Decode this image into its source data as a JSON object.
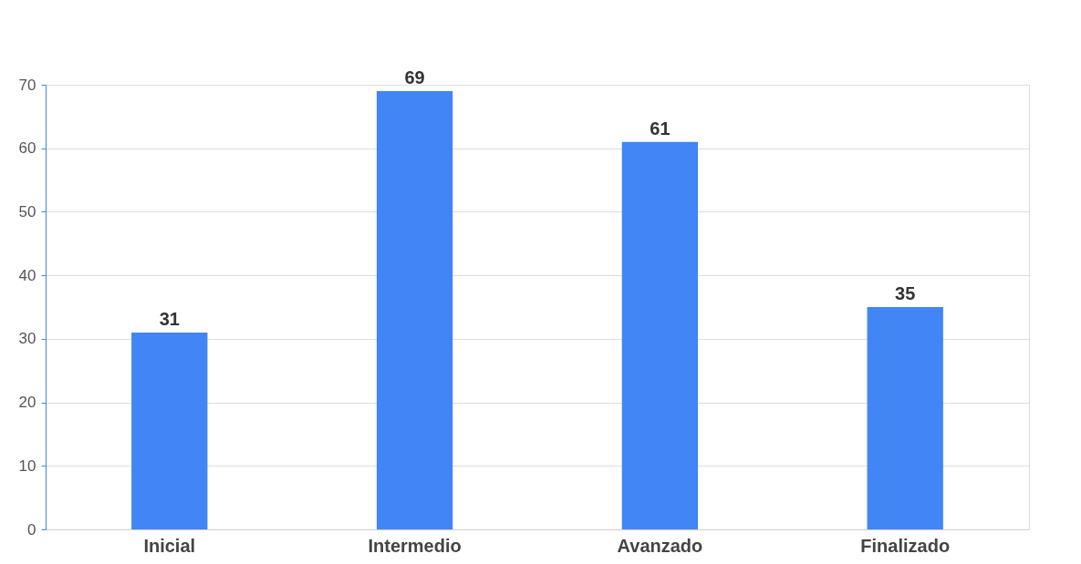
{
  "chart_data": {
    "type": "bar",
    "categories": [
      "Inicial",
      "Intermedio",
      "Avanzado",
      "Finalizado"
    ],
    "values": [
      31,
      69,
      61,
      35
    ],
    "color": "#4285f4",
    "ylim": [
      0,
      70
    ],
    "yticks": [
      0,
      10,
      20,
      30,
      40,
      50,
      60,
      70
    ],
    "grid": "y",
    "data_labels": true
  }
}
